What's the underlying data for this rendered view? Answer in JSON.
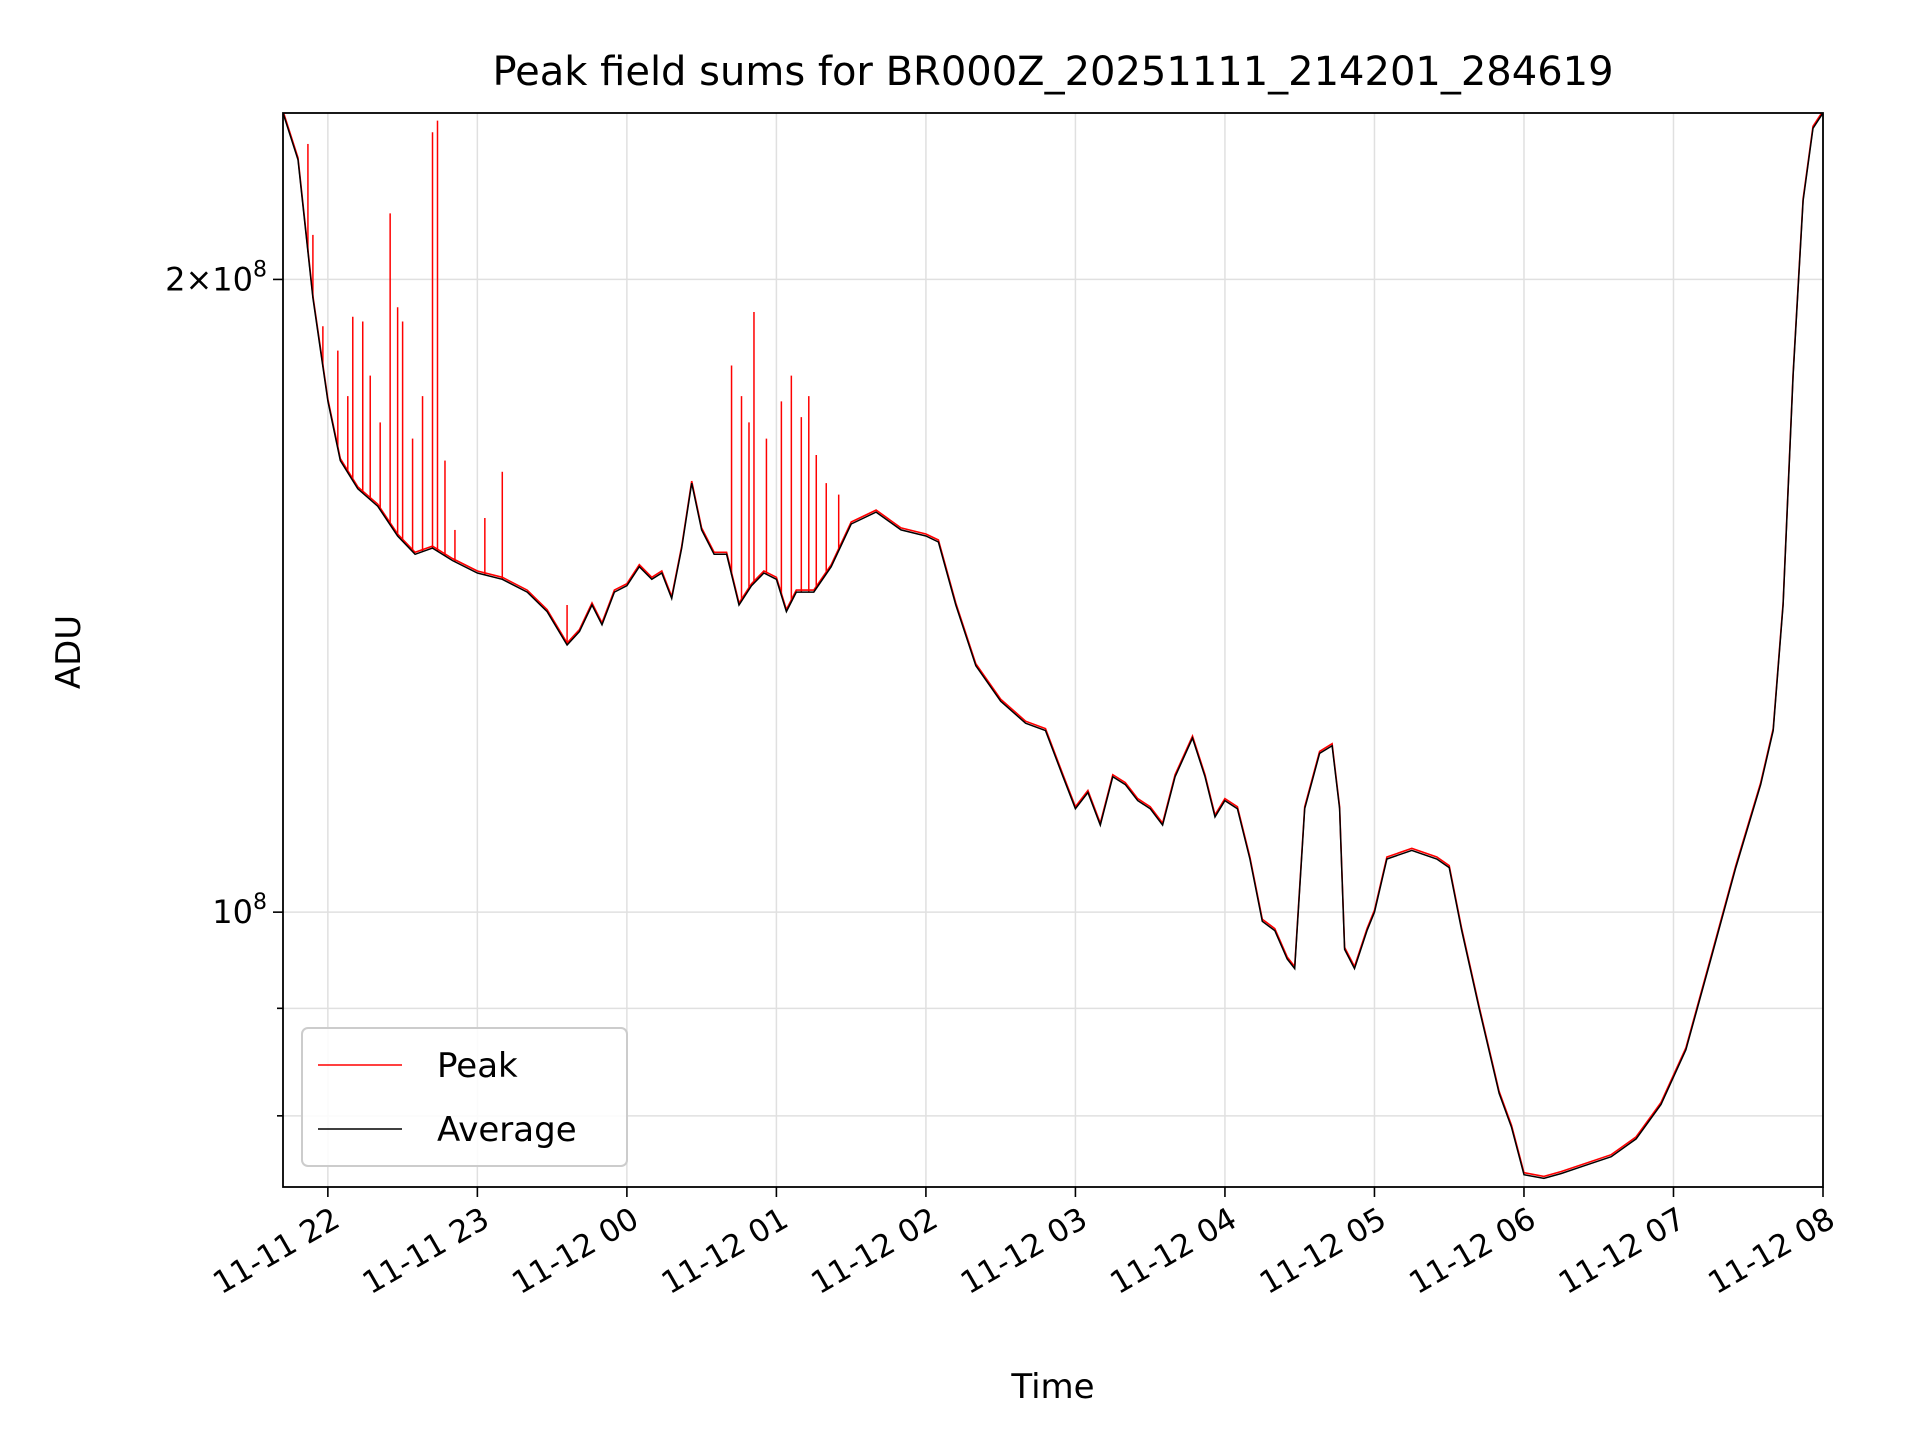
{
  "chart_data": {
    "type": "line",
    "title": "Peak field sums for BR000Z_20251111_214201_284619",
    "xlabel": "Time",
    "ylabel": "ADU",
    "yscale": "log",
    "grid": true,
    "legend_position": "lower-left",
    "xlim": [
      "2025-11-11T21:42",
      "2025-11-12T08:00"
    ],
    "ylim": [
      74000000,
      240000000
    ],
    "x_ticks": [
      "2025-11-11T22:00",
      "2025-11-11T23:00",
      "2025-11-12T00:00",
      "2025-11-12T01:00",
      "2025-11-12T02:00",
      "2025-11-12T03:00",
      "2025-11-12T04:00",
      "2025-11-12T05:00",
      "2025-11-12T06:00",
      "2025-11-12T07:00",
      "2025-11-12T08:00"
    ],
    "x_tick_labels": [
      "11-11 22",
      "11-11 23",
      "11-12 00",
      "11-12 01",
      "11-12 02",
      "11-12 03",
      "11-12 04",
      "11-12 05",
      "11-12 06",
      "11-12 07",
      "11-12 08"
    ],
    "y_major_ticks": [
      100000000,
      200000000
    ],
    "y_major_tick_labels": [
      "10^8",
      "2×10^8"
    ],
    "y_minor_ticks": [
      80000000,
      90000000
    ],
    "series": [
      {
        "name": "Average",
        "color": "#000000",
        "points": [
          [
            "2025-11-11T21:42",
            240000000
          ],
          [
            "2025-11-11T21:48",
            228000000
          ],
          [
            "2025-11-11T21:54",
            196000000
          ],
          [
            "2025-11-11T22:00",
            175000000
          ],
          [
            "2025-11-11T22:05",
            164000000
          ],
          [
            "2025-11-11T22:12",
            159000000
          ],
          [
            "2025-11-11T22:20",
            156000000
          ],
          [
            "2025-11-11T22:28",
            151000000
          ],
          [
            "2025-11-11T22:35",
            148000000
          ],
          [
            "2025-11-11T22:42",
            149000000
          ],
          [
            "2025-11-11T22:50",
            147000000
          ],
          [
            "2025-11-11T23:00",
            145000000
          ],
          [
            "2025-11-11T23:10",
            144000000
          ],
          [
            "2025-11-11T23:20",
            142000000
          ],
          [
            "2025-11-11T23:28",
            139000000
          ],
          [
            "2025-11-11T23:36",
            134000000
          ],
          [
            "2025-11-11T23:41",
            136000000
          ],
          [
            "2025-11-11T23:46",
            140000000
          ],
          [
            "2025-11-11T23:50",
            137000000
          ],
          [
            "2025-11-11T23:55",
            142000000
          ],
          [
            "2025-11-12T00:00",
            143000000
          ],
          [
            "2025-11-12T00:05",
            146000000
          ],
          [
            "2025-11-12T00:10",
            144000000
          ],
          [
            "2025-11-12T00:14",
            145000000
          ],
          [
            "2025-11-12T00:18",
            141000000
          ],
          [
            "2025-11-12T00:22",
            149000000
          ],
          [
            "2025-11-12T00:26",
            160000000
          ],
          [
            "2025-11-12T00:30",
            152000000
          ],
          [
            "2025-11-12T00:35",
            148000000
          ],
          [
            "2025-11-12T00:40",
            148000000
          ],
          [
            "2025-11-12T00:45",
            140000000
          ],
          [
            "2025-11-12T00:50",
            143000000
          ],
          [
            "2025-11-12T00:55",
            145000000
          ],
          [
            "2025-11-12T01:00",
            144000000
          ],
          [
            "2025-11-12T01:04",
            139000000
          ],
          [
            "2025-11-12T01:08",
            142000000
          ],
          [
            "2025-11-12T01:15",
            142000000
          ],
          [
            "2025-11-12T01:22",
            146000000
          ],
          [
            "2025-11-12T01:30",
            153000000
          ],
          [
            "2025-11-12T01:40",
            155000000
          ],
          [
            "2025-11-12T01:50",
            152000000
          ],
          [
            "2025-11-12T02:00",
            151000000
          ],
          [
            "2025-11-12T02:05",
            150000000
          ],
          [
            "2025-11-12T02:12",
            140000000
          ],
          [
            "2025-11-12T02:20",
            131000000
          ],
          [
            "2025-11-12T02:30",
            126000000
          ],
          [
            "2025-11-12T02:40",
            123000000
          ],
          [
            "2025-11-12T02:48",
            122000000
          ],
          [
            "2025-11-12T02:55",
            116000000
          ],
          [
            "2025-11-12T03:00",
            112000000
          ],
          [
            "2025-11-12T03:05",
            114000000
          ],
          [
            "2025-11-12T03:10",
            110000000
          ],
          [
            "2025-11-12T03:15",
            116000000
          ],
          [
            "2025-11-12T03:20",
            115000000
          ],
          [
            "2025-11-12T03:25",
            113000000
          ],
          [
            "2025-11-12T03:30",
            112000000
          ],
          [
            "2025-11-12T03:35",
            110000000
          ],
          [
            "2025-11-12T03:40",
            116000000
          ],
          [
            "2025-11-12T03:47",
            121000000
          ],
          [
            "2025-11-12T03:52",
            116000000
          ],
          [
            "2025-11-12T03:56",
            111000000
          ],
          [
            "2025-11-12T04:00",
            113000000
          ],
          [
            "2025-11-12T04:05",
            112000000
          ],
          [
            "2025-11-12T04:10",
            106000000
          ],
          [
            "2025-11-12T04:15",
            99000000
          ],
          [
            "2025-11-12T04:20",
            98000000
          ],
          [
            "2025-11-12T04:25",
            95000000
          ],
          [
            "2025-11-12T04:28",
            94000000
          ],
          [
            "2025-11-12T04:32",
            112000000
          ],
          [
            "2025-11-12T04:38",
            119000000
          ],
          [
            "2025-11-12T04:43",
            120000000
          ],
          [
            "2025-11-12T04:46",
            112000000
          ],
          [
            "2025-11-12T04:48",
            96000000
          ],
          [
            "2025-11-12T04:52",
            94000000
          ],
          [
            "2025-11-12T04:57",
            98000000
          ],
          [
            "2025-11-12T05:00",
            100000000
          ],
          [
            "2025-11-12T05:05",
            106000000
          ],
          [
            "2025-11-12T05:15",
            107000000
          ],
          [
            "2025-11-12T05:25",
            106000000
          ],
          [
            "2025-11-12T05:30",
            105000000
          ],
          [
            "2025-11-12T05:35",
            98000000
          ],
          [
            "2025-11-12T05:42",
            90000000
          ],
          [
            "2025-11-12T05:50",
            82000000
          ],
          [
            "2025-11-12T05:55",
            79000000
          ],
          [
            "2025-11-12T06:00",
            75000000
          ],
          [
            "2025-11-12T06:08",
            74700000
          ],
          [
            "2025-11-12T06:15",
            75100000
          ],
          [
            "2025-11-12T06:25",
            75800000
          ],
          [
            "2025-11-12T06:35",
            76500000
          ],
          [
            "2025-11-12T06:45",
            78000000
          ],
          [
            "2025-11-12T06:55",
            81000000
          ],
          [
            "2025-11-12T07:05",
            86000000
          ],
          [
            "2025-11-12T07:15",
            95000000
          ],
          [
            "2025-11-12T07:25",
            105000000
          ],
          [
            "2025-11-12T07:35",
            115000000
          ],
          [
            "2025-11-12T07:40",
            122000000
          ],
          [
            "2025-11-12T07:44",
            140000000
          ],
          [
            "2025-11-12T07:48",
            180000000
          ],
          [
            "2025-11-12T07:52",
            218000000
          ],
          [
            "2025-11-12T07:56",
            236000000
          ],
          [
            "2025-11-12T08:00",
            240000000
          ]
        ]
      },
      {
        "name": "Peak",
        "color": "#ff0000",
        "spikes": [
          [
            "2025-11-11T21:52",
            232000000
          ],
          [
            "2025-11-11T21:54",
            210000000
          ],
          [
            "2025-11-11T21:58",
            190000000
          ],
          [
            "2025-11-11T22:04",
            185000000
          ],
          [
            "2025-11-11T22:08",
            176000000
          ],
          [
            "2025-11-11T22:10",
            192000000
          ],
          [
            "2025-11-11T22:14",
            191000000
          ],
          [
            "2025-11-11T22:17",
            180000000
          ],
          [
            "2025-11-11T22:21",
            171000000
          ],
          [
            "2025-11-11T22:25",
            215000000
          ],
          [
            "2025-11-11T22:28",
            194000000
          ],
          [
            "2025-11-11T22:30",
            191000000
          ],
          [
            "2025-11-11T22:34",
            168000000
          ],
          [
            "2025-11-11T22:38",
            176000000
          ],
          [
            "2025-11-11T22:42",
            235000000
          ],
          [
            "2025-11-11T22:44",
            238000000
          ],
          [
            "2025-11-11T22:47",
            164000000
          ],
          [
            "2025-11-11T22:51",
            152000000
          ],
          [
            "2025-11-11T23:03",
            154000000
          ],
          [
            "2025-11-11T23:10",
            162000000
          ],
          [
            "2025-11-11T23:36",
            140000000
          ],
          [
            "2025-11-12T00:42",
            182000000
          ],
          [
            "2025-11-12T00:46",
            176000000
          ],
          [
            "2025-11-12T00:49",
            171000000
          ],
          [
            "2025-11-12T00:51",
            193000000
          ],
          [
            "2025-11-12T00:56",
            168000000
          ],
          [
            "2025-11-12T01:02",
            175000000
          ],
          [
            "2025-11-12T01:06",
            180000000
          ],
          [
            "2025-11-12T01:10",
            172000000
          ],
          [
            "2025-11-12T01:13",
            176000000
          ],
          [
            "2025-11-12T01:16",
            165000000
          ],
          [
            "2025-11-12T01:20",
            160000000
          ],
          [
            "2025-11-12T01:25",
            158000000
          ]
        ]
      }
    ]
  }
}
